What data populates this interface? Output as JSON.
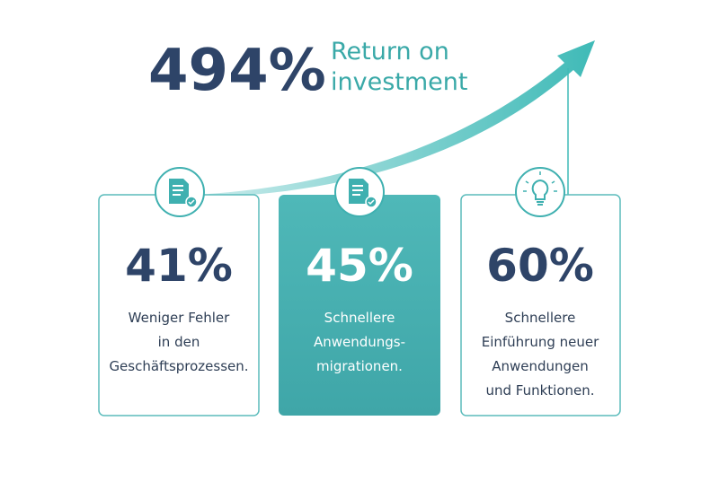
{
  "headline": {
    "value": "494%",
    "label_lines": [
      "Return on",
      "investment"
    ]
  },
  "cards": [
    {
      "value": "41%",
      "lines": [
        "Weniger Fehler",
        "in den",
        "Geschäftsprozessen."
      ]
    },
    {
      "value": "45%",
      "lines": [
        "Schnellere",
        "Anwendungs-",
        "migrationen."
      ]
    },
    {
      "value": "60%",
      "lines": [
        "Schnellere",
        "Einführung neuer",
        "Anwendungen",
        "und Funktionen."
      ]
    }
  ]
}
